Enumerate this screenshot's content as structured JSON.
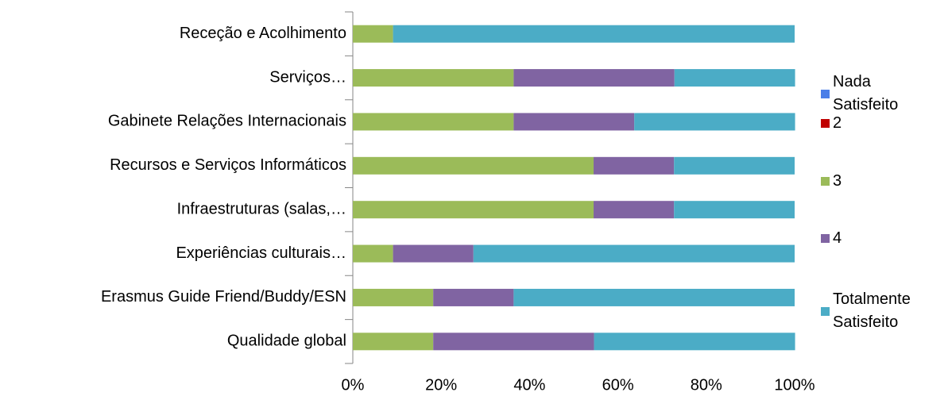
{
  "chart_data": {
    "type": "stacked_barh",
    "categories": [
      "Receção e Acolhimento",
      "Serviços…",
      "Gabinete Relações Internacionais",
      "Recursos e Serviços Informáticos",
      "Infraestruturas (salas,…",
      "Experiências culturais…",
      "Erasmus Guide Friend/Buddy/ESN",
      "Qualidade global"
    ],
    "series": [
      {
        "name": "Nada Satisfeito",
        "color": "#4a7ee8",
        "values": [
          0,
          0,
          0,
          0,
          0,
          0,
          0,
          0
        ]
      },
      {
        "name": "2",
        "color": "#c00000",
        "values": [
          0,
          0,
          0,
          0,
          0,
          0,
          0,
          0
        ]
      },
      {
        "name": "3",
        "color": "#9bbb59",
        "values": [
          9.1,
          36.4,
          36.4,
          54.5,
          54.5,
          9.1,
          18.2,
          18.2
        ]
      },
      {
        "name": "4",
        "color": "#8064a2",
        "values": [
          0,
          36.4,
          27.3,
          18.2,
          18.2,
          18.2,
          18.2,
          36.4
        ]
      },
      {
        "name": "Totalmente Satisfeito",
        "color": "#4bacc6",
        "values": [
          90.9,
          27.3,
          36.4,
          27.3,
          27.3,
          72.7,
          63.6,
          45.5
        ]
      }
    ],
    "xlim": [
      0,
      100
    ],
    "xticks": [
      {
        "value": 0,
        "label": "0%"
      },
      {
        "value": 20,
        "label": "20%"
      },
      {
        "value": 40,
        "label": "40%"
      },
      {
        "value": 60,
        "label": "60%"
      },
      {
        "value": 80,
        "label": "80%"
      },
      {
        "value": 100,
        "label": "100%"
      }
    ],
    "legend": "right"
  }
}
